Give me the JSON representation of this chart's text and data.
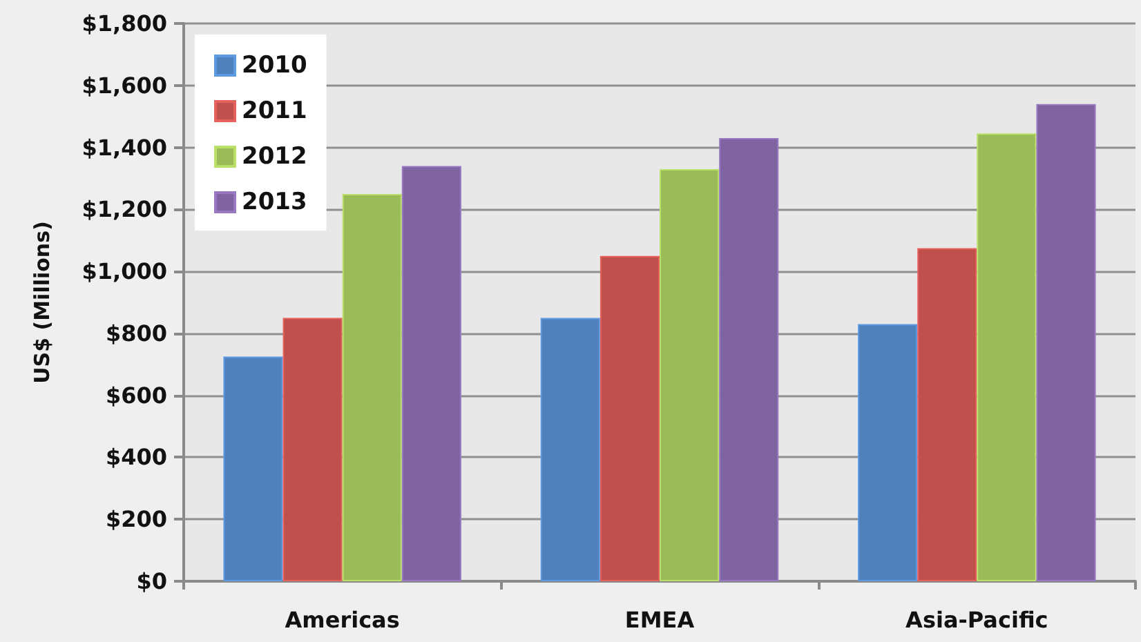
{
  "chart_data": {
    "type": "bar",
    "ylabel": "US$ (Millions)",
    "categories": [
      "Americas",
      "EMEA",
      "Asia-Pacific"
    ],
    "series": [
      {
        "name": "2010",
        "color": "#4f81bd",
        "values": [
          725,
          850,
          830
        ]
      },
      {
        "name": "2011",
        "color": "#c0504d",
        "values": [
          850,
          1050,
          1075
        ]
      },
      {
        "name": "2012",
        "color": "#9bbb59",
        "values": [
          1250,
          1330,
          1445
        ]
      },
      {
        "name": "2013",
        "color": "#8064a2",
        "values": [
          1340,
          1430,
          1540
        ]
      }
    ],
    "ylim": [
      0,
      1800
    ],
    "yticks": [
      {
        "value": 0,
        "label": "$0"
      },
      {
        "value": 200,
        "label": "$200"
      },
      {
        "value": 400,
        "label": "$400"
      },
      {
        "value": 600,
        "label": "$600"
      },
      {
        "value": 800,
        "label": "$800"
      },
      {
        "value": 1000,
        "label": "$1,000"
      },
      {
        "value": 1200,
        "label": "$1,200"
      },
      {
        "value": 1400,
        "label": "$1,400"
      },
      {
        "value": 1600,
        "label": "$1,600"
      },
      {
        "value": 1800,
        "label": "$1,800"
      }
    ],
    "grid": "y",
    "legend": "top left"
  }
}
